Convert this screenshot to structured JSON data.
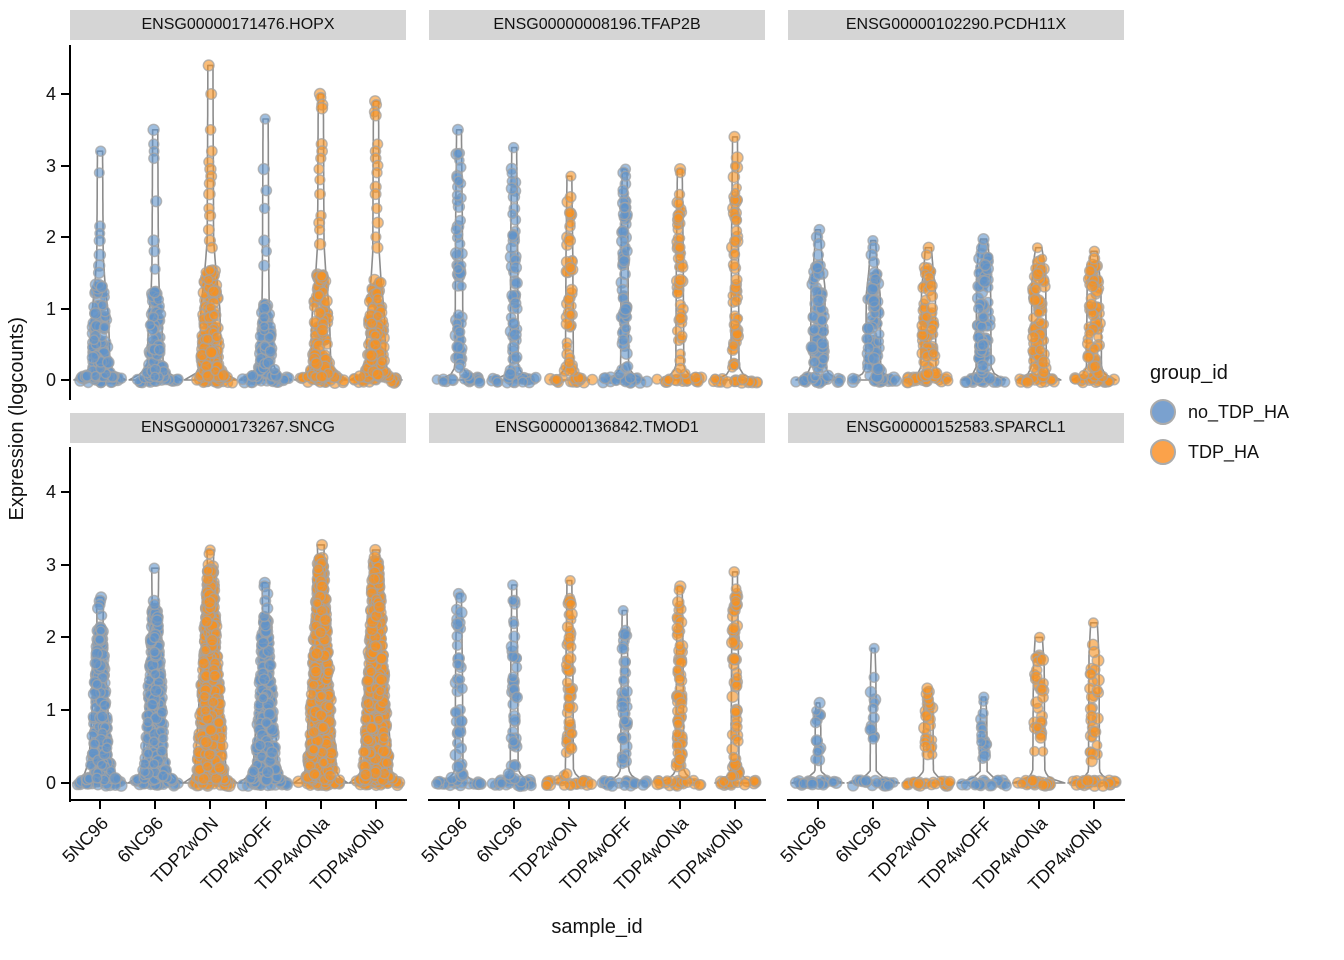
{
  "chart_data": {
    "type": "violin",
    "title": "",
    "xlabel": "sample_id",
    "ylabel": "Expression (logcounts)",
    "yticks": [
      0,
      1,
      2,
      3,
      4
    ],
    "ylim": [
      0,
      4.4
    ],
    "categories": [
      "5NC96",
      "6NC96",
      "TDP2wON",
      "TDP4wOFF",
      "TDP4wONa",
      "TDP4wONb"
    ],
    "legend": {
      "title": "group_id",
      "items": [
        {
          "label": "no_TDP_HA",
          "group": "no",
          "color": "#7aa1cf"
        },
        {
          "label": "TDP_HA",
          "group": "ha",
          "color": "#fba24a"
        }
      ]
    },
    "colors": {
      "no": "#5f93c9",
      "ha": "#f79120",
      "point_stroke": "#a3a3a3",
      "violin_line": "#8c8c8c",
      "violin_fill": "#fbfbfb",
      "strip_bg": "#d5d5d5"
    },
    "facets": [
      {
        "title": "ENSG00000171476.HOPX",
        "style": "funnel",
        "violins": [
          {
            "sample": "5NC96",
            "group": "no",
            "max": 3.2,
            "dense_top": 1.35,
            "w": 10,
            "n": 120,
            "nz": 20,
            "uppers": [
              3.2,
              2.9,
              2.15,
              2.05,
              1.95,
              1.75,
              1.6,
              1.5
            ]
          },
          {
            "sample": "6NC96",
            "group": "no",
            "max": 3.5,
            "dense_top": 1.25,
            "w": 8,
            "n": 95,
            "nz": 20,
            "uppers": [
              3.5,
              3.3,
              3.2,
              3.1,
              2.5,
              1.95,
              1.8,
              1.55
            ]
          },
          {
            "sample": "TDP2wON",
            "group": "ha",
            "max": 4.4,
            "dense_top": 1.55,
            "w": 11,
            "n": 170,
            "nz": 22,
            "uppers": [
              4.4,
              4.0,
              3.5,
              3.2,
              3.05,
              2.95,
              2.85,
              2.75,
              2.6,
              2.4,
              2.3,
              2.1,
              1.95,
              1.85
            ]
          },
          {
            "sample": "TDP4wOFF",
            "group": "no",
            "max": 3.65,
            "dense_top": 1.1,
            "w": 7,
            "n": 85,
            "nz": 20,
            "uppers": [
              3.65,
              2.95,
              2.65,
              2.4,
              1.95,
              1.8,
              1.6
            ]
          },
          {
            "sample": "TDP4wONa",
            "group": "ha",
            "max": 4.0,
            "dense_top": 1.5,
            "w": 10,
            "n": 140,
            "nz": 22,
            "uppers": [
              4.0,
              3.95,
              3.85,
              3.8,
              3.3,
              3.2,
              3.1,
              2.95,
              2.8,
              2.6,
              2.3,
              2.2,
              2.1,
              1.9
            ]
          },
          {
            "sample": "TDP4wONb",
            "group": "ha",
            "max": 3.9,
            "dense_top": 1.4,
            "w": 10,
            "n": 130,
            "nz": 22,
            "uppers": [
              3.9,
              3.85,
              3.75,
              3.7,
              3.3,
              3.2,
              3.1,
              3.0,
              2.9,
              2.7,
              2.6,
              2.4,
              2.2,
              2.0,
              1.85
            ]
          }
        ]
      },
      {
        "title": "ENSG00000008196.TFAP2B",
        "style": "strip",
        "violins": [
          {
            "sample": "5NC96",
            "group": "no",
            "max": 3.5,
            "n": 60,
            "nz": 20,
            "uppers": [
              3.5
            ]
          },
          {
            "sample": "6NC96",
            "group": "no",
            "max": 3.25,
            "n": 50,
            "nz": 20,
            "uppers": [
              3.25
            ]
          },
          {
            "sample": "TDP2wON",
            "group": "ha",
            "max": 2.85,
            "n": 45,
            "nz": 20,
            "uppers": [
              2.85
            ]
          },
          {
            "sample": "TDP4wOFF",
            "group": "no",
            "max": 2.95,
            "n": 60,
            "nz": 20,
            "uppers": [
              2.95,
              2.9,
              2.85
            ]
          },
          {
            "sample": "TDP4wONa",
            "group": "ha",
            "max": 2.95,
            "n": 50,
            "nz": 20,
            "uppers": [
              2.95,
              2.9
            ]
          },
          {
            "sample": "TDP4wONb",
            "group": "ha",
            "max": 3.4,
            "n": 55,
            "nz": 20,
            "uppers": [
              3.4
            ]
          }
        ]
      },
      {
        "title": "ENSG00000102290.PCDH11X",
        "style": "column",
        "violins": [
          {
            "sample": "5NC96",
            "group": "no",
            "max": 2.1,
            "dense_top": 1.62,
            "n": 70,
            "nz": 20,
            "uppers": [
              2.1,
              2.0,
              1.9,
              1.75
            ]
          },
          {
            "sample": "6NC96",
            "group": "no",
            "max": 1.95,
            "dense_top": 1.5,
            "n": 65,
            "nz": 20,
            "uppers": [
              1.95,
              1.85,
              1.75,
              1.65
            ]
          },
          {
            "sample": "TDP2wON",
            "group": "ha",
            "max": 1.85,
            "dense_top": 1.58,
            "n": 70,
            "nz": 20,
            "uppers": [
              1.85,
              1.75
            ]
          },
          {
            "sample": "TDP4wOFF",
            "group": "no",
            "max": 1.97,
            "dense_top": 1.88,
            "n": 75,
            "nz": 20,
            "uppers": [
              1.97
            ]
          },
          {
            "sample": "TDP4wONa",
            "group": "ha",
            "max": 1.85,
            "dense_top": 1.72,
            "n": 75,
            "nz": 20,
            "uppers": [
              1.85
            ]
          },
          {
            "sample": "TDP4wONb",
            "group": "ha",
            "max": 1.8,
            "dense_top": 1.62,
            "n": 70,
            "nz": 20,
            "uppers": [
              1.8,
              1.7
            ]
          }
        ]
      },
      {
        "title": "ENSG00000173267.SNCG",
        "style": "cone",
        "violins": [
          {
            "sample": "5NC96",
            "group": "no",
            "max": 2.55,
            "dense_top": 2.15,
            "w": 11,
            "n": 270,
            "nz": 24,
            "uppers": [
              2.55,
              2.5,
              2.45,
              2.4,
              2.3
            ]
          },
          {
            "sample": "6NC96",
            "group": "no",
            "max": 2.95,
            "dense_top": 2.4,
            "w": 12,
            "n": 320,
            "nz": 24,
            "uppers": [
              2.95,
              2.5,
              2.45
            ]
          },
          {
            "sample": "TDP2wON",
            "group": "ha",
            "max": 3.2,
            "dense_top": 3.0,
            "w": 15,
            "n": 520,
            "nz": 24,
            "uppers": [
              3.2,
              3.15
            ]
          },
          {
            "sample": "TDP4wOFF",
            "group": "no",
            "max": 2.75,
            "dense_top": 2.3,
            "w": 12,
            "n": 320,
            "nz": 24,
            "uppers": [
              2.75,
              2.7,
              2.6,
              2.5,
              2.4
            ]
          },
          {
            "sample": "TDP4wONa",
            "group": "ha",
            "max": 3.27,
            "dense_top": 3.1,
            "w": 15,
            "n": 560,
            "nz": 24,
            "uppers": [
              3.27
            ]
          },
          {
            "sample": "TDP4wONb",
            "group": "ha",
            "max": 3.2,
            "dense_top": 3.05,
            "w": 15,
            "n": 520,
            "nz": 24,
            "uppers": [
              3.2,
              3.1
            ]
          }
        ]
      },
      {
        "title": "ENSG00000136842.TMOD1",
        "style": "strip",
        "violins": [
          {
            "sample": "5NC96",
            "group": "no",
            "max": 2.6,
            "n": 40,
            "nz": 20,
            "uppers": [
              2.6,
              2.55
            ]
          },
          {
            "sample": "6NC96",
            "group": "no",
            "max": 2.72,
            "n": 42,
            "nz": 20,
            "uppers": [
              2.72
            ]
          },
          {
            "sample": "TDP2wON",
            "group": "ha",
            "max": 2.78,
            "n": 48,
            "nz": 20,
            "uppers": [
              2.78,
              2.45
            ]
          },
          {
            "sample": "TDP4wOFF",
            "group": "no",
            "max": 2.37,
            "n": 40,
            "nz": 20,
            "uppers": [
              2.37
            ]
          },
          {
            "sample": "TDP4wONa",
            "group": "ha",
            "max": 2.7,
            "n": 70,
            "nz": 20,
            "uppers": [
              2.7,
              2.65
            ]
          },
          {
            "sample": "TDP4wONb",
            "group": "ha",
            "max": 2.9,
            "n": 65,
            "nz": 20,
            "uppers": [
              2.9
            ]
          }
        ]
      },
      {
        "title": "ENSG00000152583.SPARCL1",
        "style": "flat",
        "violins": [
          {
            "sample": "5NC96",
            "group": "no",
            "max": 1.1,
            "w": 3,
            "n": 13,
            "nz": 20,
            "lo": 0.28,
            "hi": 1.05,
            "uppers": []
          },
          {
            "sample": "6NC96",
            "group": "no",
            "max": 1.85,
            "w": 3,
            "n": 11,
            "nz": 20,
            "lo": 0.55,
            "hi": 1.25,
            "uppers": [
              1.85,
              1.45
            ]
          },
          {
            "sample": "TDP2wON",
            "group": "ha",
            "max": 1.3,
            "w": 5,
            "n": 24,
            "nz": 22,
            "lo": 0.3,
            "hi": 1.28,
            "uppers": []
          },
          {
            "sample": "TDP4wOFF",
            "group": "no",
            "max": 1.18,
            "w": 3.5,
            "n": 16,
            "nz": 20,
            "lo": 0.3,
            "hi": 1.12,
            "uppers": []
          },
          {
            "sample": "TDP4wONa",
            "group": "ha",
            "max": 2.0,
            "w": 6,
            "n": 34,
            "nz": 22,
            "lo": 0.4,
            "hi": 1.8,
            "uppers": [
              2.0
            ]
          },
          {
            "sample": "TDP4wONb",
            "group": "ha",
            "max": 2.2,
            "w": 5.5,
            "n": 28,
            "nz": 22,
            "lo": 0.3,
            "hi": 1.72,
            "uppers": [
              2.2,
              1.9,
              1.8
            ]
          }
        ]
      }
    ]
  }
}
